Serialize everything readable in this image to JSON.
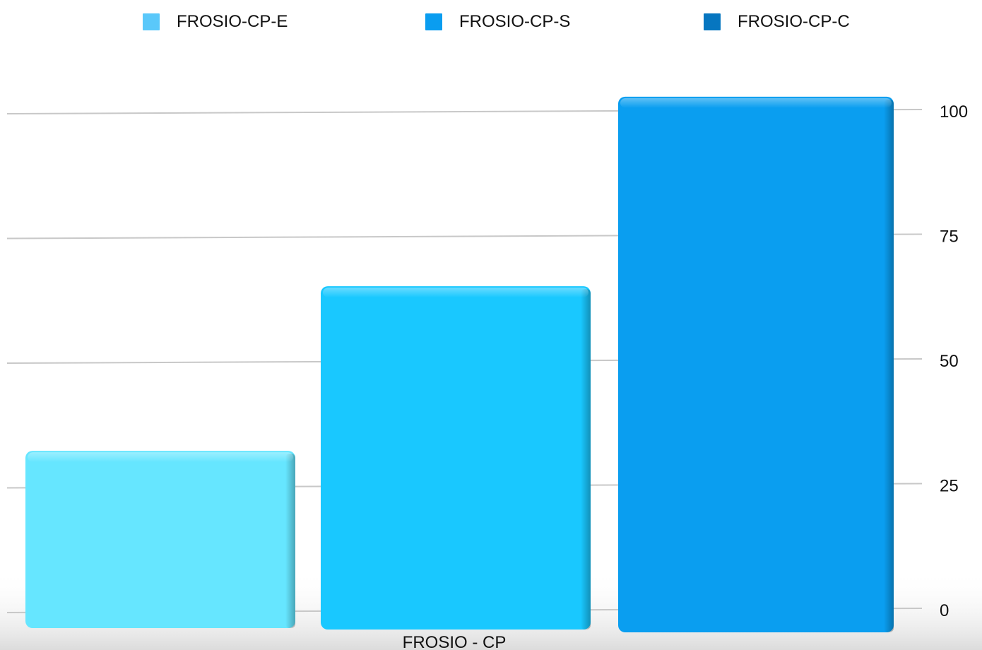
{
  "chart_data": {
    "type": "bar",
    "categories": [
      "FROSIO - CP"
    ],
    "series": [
      {
        "name": "FROSIO-CP-E",
        "values": [
          32
        ],
        "color": "#66E6FF"
      },
      {
        "name": "FROSIO-CP-S",
        "values": [
          65
        ],
        "color": "#19C8FF"
      },
      {
        "name": "FROSIO-CP-C",
        "values": [
          103
        ],
        "color": "#0A9EF0"
      }
    ],
    "legend_colors": [
      "#5AC8FA",
      "#0A9DF0",
      "#0676C0"
    ],
    "xlabel": "",
    "ylabel": "",
    "ylim": [
      0,
      100
    ],
    "yticks": [
      "0",
      "25",
      "50",
      "75",
      "100"
    ],
    "ytick_values": [
      0,
      25,
      50,
      75,
      100
    ],
    "y_axis_side": "right",
    "legend_position": "top",
    "grid": true
  }
}
